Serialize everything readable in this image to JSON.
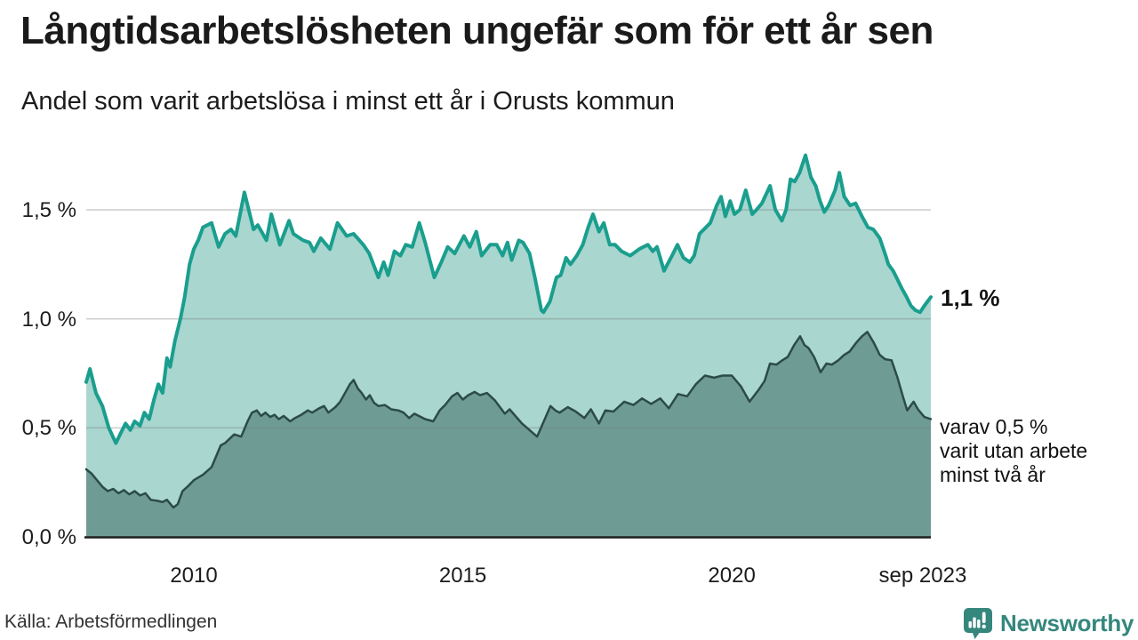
{
  "header": {
    "title": "Långtidsarbetslösheten ungefär som för ett år sen",
    "subtitle": "Andel som varit arbetslösa i minst ett år i Orusts kommun"
  },
  "footer": {
    "source": "Källa: Arbetsförmedlingen",
    "brand": "Newsworthy"
  },
  "colors": {
    "line_total": "#1a9e8e",
    "fill_total": "#a9d6cf",
    "line_two_plus": "#2c4b46",
    "fill_two_plus": "#6e9c95",
    "gridline": "rgba(120,120,120,0.35)",
    "baseline": "#1f1f1f",
    "brand_teal": "#35877d"
  },
  "chart_data": {
    "type": "area",
    "title": "Långtidsarbetslösheten ungefär som för ett år sen",
    "subtitle": "Andel som varit arbetslösa i minst ett år i Orusts kommun",
    "unit": "%",
    "x_range": [
      2008.0,
      2023.7
    ],
    "ylim": [
      0,
      1.8
    ],
    "grid": true,
    "legend_position": "none",
    "x_ticks": [
      {
        "label": "2010",
        "value": 2010
      },
      {
        "label": "2015",
        "value": 2015
      },
      {
        "label": "2020",
        "value": 2020
      },
      {
        "label": "sep 2023",
        "value": 2023.55
      }
    ],
    "y_ticks": [
      {
        "label": "0,0 %",
        "value": 0
      },
      {
        "label": "0,5 %",
        "value": 0.5
      },
      {
        "label": "1,0 %",
        "value": 1.0
      },
      {
        "label": "1,5 %",
        "value": 1.5
      }
    ],
    "annotations": {
      "latest_total": "1,1 %",
      "two_year_lines": [
        "varav 0,5 %",
        "varit utan arbete",
        "minst två år"
      ]
    },
    "series": [
      {
        "name": "Arbetslösa minst ett år",
        "points": [
          [
            2008.0,
            0.71
          ],
          [
            2008.07,
            0.77
          ],
          [
            2008.18,
            0.66
          ],
          [
            2008.3,
            0.6
          ],
          [
            2008.42,
            0.5
          ],
          [
            2008.55,
            0.43
          ],
          [
            2008.65,
            0.48
          ],
          [
            2008.73,
            0.52
          ],
          [
            2008.82,
            0.49
          ],
          [
            2008.9,
            0.53
          ],
          [
            2009.0,
            0.51
          ],
          [
            2009.08,
            0.57
          ],
          [
            2009.17,
            0.54
          ],
          [
            2009.26,
            0.63
          ],
          [
            2009.34,
            0.7
          ],
          [
            2009.42,
            0.66
          ],
          [
            2009.5,
            0.82
          ],
          [
            2009.56,
            0.78
          ],
          [
            2009.65,
            0.9
          ],
          [
            2009.75,
            1.0
          ],
          [
            2009.83,
            1.1
          ],
          [
            2009.92,
            1.25
          ],
          [
            2010.0,
            1.32
          ],
          [
            2010.08,
            1.36
          ],
          [
            2010.17,
            1.42
          ],
          [
            2010.33,
            1.44
          ],
          [
            2010.46,
            1.33
          ],
          [
            2010.58,
            1.39
          ],
          [
            2010.69,
            1.41
          ],
          [
            2010.78,
            1.38
          ],
          [
            2010.94,
            1.58
          ],
          [
            2011.11,
            1.41
          ],
          [
            2011.19,
            1.43
          ],
          [
            2011.35,
            1.36
          ],
          [
            2011.44,
            1.48
          ],
          [
            2011.6,
            1.34
          ],
          [
            2011.77,
            1.45
          ],
          [
            2011.85,
            1.39
          ],
          [
            2012.03,
            1.36
          ],
          [
            2012.15,
            1.35
          ],
          [
            2012.23,
            1.31
          ],
          [
            2012.36,
            1.37
          ],
          [
            2012.53,
            1.32
          ],
          [
            2012.67,
            1.44
          ],
          [
            2012.84,
            1.38
          ],
          [
            2012.97,
            1.39
          ],
          [
            2013.15,
            1.34
          ],
          [
            2013.26,
            1.3
          ],
          [
            2013.43,
            1.19
          ],
          [
            2013.53,
            1.26
          ],
          [
            2013.61,
            1.2
          ],
          [
            2013.73,
            1.31
          ],
          [
            2013.84,
            1.29
          ],
          [
            2013.94,
            1.34
          ],
          [
            2014.06,
            1.33
          ],
          [
            2014.19,
            1.44
          ],
          [
            2014.3,
            1.35
          ],
          [
            2014.47,
            1.19
          ],
          [
            2014.6,
            1.26
          ],
          [
            2014.72,
            1.33
          ],
          [
            2014.85,
            1.3
          ],
          [
            2015.02,
            1.38
          ],
          [
            2015.13,
            1.33
          ],
          [
            2015.25,
            1.4
          ],
          [
            2015.35,
            1.29
          ],
          [
            2015.51,
            1.34
          ],
          [
            2015.63,
            1.34
          ],
          [
            2015.74,
            1.29
          ],
          [
            2015.83,
            1.35
          ],
          [
            2015.91,
            1.27
          ],
          [
            2016.04,
            1.36
          ],
          [
            2016.12,
            1.35
          ],
          [
            2016.24,
            1.3
          ],
          [
            2016.34,
            1.19
          ],
          [
            2016.46,
            1.04
          ],
          [
            2016.5,
            1.03
          ],
          [
            2016.62,
            1.08
          ],
          [
            2016.74,
            1.19
          ],
          [
            2016.82,
            1.2
          ],
          [
            2016.92,
            1.28
          ],
          [
            2017.0,
            1.25
          ],
          [
            2017.12,
            1.29
          ],
          [
            2017.23,
            1.34
          ],
          [
            2017.33,
            1.42
          ],
          [
            2017.42,
            1.48
          ],
          [
            2017.53,
            1.4
          ],
          [
            2017.62,
            1.44
          ],
          [
            2017.73,
            1.34
          ],
          [
            2017.83,
            1.34
          ],
          [
            2017.95,
            1.31
          ],
          [
            2018.11,
            1.29
          ],
          [
            2018.28,
            1.32
          ],
          [
            2018.44,
            1.34
          ],
          [
            2018.53,
            1.31
          ],
          [
            2018.61,
            1.33
          ],
          [
            2018.74,
            1.22
          ],
          [
            2018.89,
            1.29
          ],
          [
            2018.99,
            1.34
          ],
          [
            2019.1,
            1.28
          ],
          [
            2019.22,
            1.26
          ],
          [
            2019.3,
            1.29
          ],
          [
            2019.4,
            1.39
          ],
          [
            2019.52,
            1.42
          ],
          [
            2019.6,
            1.44
          ],
          [
            2019.72,
            1.52
          ],
          [
            2019.8,
            1.56
          ],
          [
            2019.88,
            1.47
          ],
          [
            2019.97,
            1.54
          ],
          [
            2020.05,
            1.48
          ],
          [
            2020.15,
            1.5
          ],
          [
            2020.26,
            1.59
          ],
          [
            2020.38,
            1.48
          ],
          [
            2020.46,
            1.5
          ],
          [
            2020.56,
            1.53
          ],
          [
            2020.71,
            1.61
          ],
          [
            2020.81,
            1.5
          ],
          [
            2020.93,
            1.45
          ],
          [
            2021.01,
            1.5
          ],
          [
            2021.09,
            1.64
          ],
          [
            2021.17,
            1.63
          ],
          [
            2021.26,
            1.67
          ],
          [
            2021.37,
            1.75
          ],
          [
            2021.47,
            1.65
          ],
          [
            2021.56,
            1.61
          ],
          [
            2021.64,
            1.54
          ],
          [
            2021.72,
            1.49
          ],
          [
            2021.8,
            1.52
          ],
          [
            2021.92,
            1.59
          ],
          [
            2022.0,
            1.67
          ],
          [
            2022.09,
            1.56
          ],
          [
            2022.2,
            1.52
          ],
          [
            2022.3,
            1.53
          ],
          [
            2022.42,
            1.47
          ],
          [
            2022.53,
            1.42
          ],
          [
            2022.63,
            1.41
          ],
          [
            2022.75,
            1.37
          ],
          [
            2022.86,
            1.29
          ],
          [
            2022.91,
            1.25
          ],
          [
            2023.0,
            1.22
          ],
          [
            2023.08,
            1.18
          ],
          [
            2023.16,
            1.14
          ],
          [
            2023.25,
            1.1
          ],
          [
            2023.33,
            1.06
          ],
          [
            2023.41,
            1.04
          ],
          [
            2023.5,
            1.03
          ],
          [
            2023.58,
            1.06
          ],
          [
            2023.7,
            1.1
          ]
        ]
      },
      {
        "name": "varav utan arbete minst två år",
        "points": [
          [
            2008.0,
            0.31
          ],
          [
            2008.1,
            0.29
          ],
          [
            2008.2,
            0.26
          ],
          [
            2008.3,
            0.23
          ],
          [
            2008.4,
            0.21
          ],
          [
            2008.5,
            0.22
          ],
          [
            2008.6,
            0.2
          ],
          [
            2008.7,
            0.215
          ],
          [
            2008.8,
            0.195
          ],
          [
            2008.9,
            0.21
          ],
          [
            2009.0,
            0.19
          ],
          [
            2009.1,
            0.2
          ],
          [
            2009.2,
            0.17
          ],
          [
            2009.33,
            0.165
          ],
          [
            2009.42,
            0.16
          ],
          [
            2009.5,
            0.17
          ],
          [
            2009.62,
            0.135
          ],
          [
            2009.7,
            0.15
          ],
          [
            2009.79,
            0.21
          ],
          [
            2009.88,
            0.23
          ],
          [
            2010.0,
            0.26
          ],
          [
            2010.17,
            0.285
          ],
          [
            2010.33,
            0.32
          ],
          [
            2010.5,
            0.42
          ],
          [
            2010.58,
            0.43
          ],
          [
            2010.75,
            0.47
          ],
          [
            2010.88,
            0.46
          ],
          [
            2011.0,
            0.53
          ],
          [
            2011.08,
            0.57
          ],
          [
            2011.17,
            0.58
          ],
          [
            2011.25,
            0.555
          ],
          [
            2011.33,
            0.57
          ],
          [
            2011.42,
            0.55
          ],
          [
            2011.5,
            0.56
          ],
          [
            2011.58,
            0.54
          ],
          [
            2011.67,
            0.555
          ],
          [
            2011.79,
            0.53
          ],
          [
            2011.88,
            0.545
          ],
          [
            2012.0,
            0.56
          ],
          [
            2012.12,
            0.58
          ],
          [
            2012.2,
            0.57
          ],
          [
            2012.33,
            0.59
          ],
          [
            2012.42,
            0.6
          ],
          [
            2012.5,
            0.57
          ],
          [
            2012.63,
            0.595
          ],
          [
            2012.72,
            0.62
          ],
          [
            2012.8,
            0.655
          ],
          [
            2012.9,
            0.7
          ],
          [
            2012.97,
            0.72
          ],
          [
            2013.05,
            0.68
          ],
          [
            2013.12,
            0.66
          ],
          [
            2013.2,
            0.63
          ],
          [
            2013.27,
            0.65
          ],
          [
            2013.35,
            0.615
          ],
          [
            2013.43,
            0.6
          ],
          [
            2013.55,
            0.605
          ],
          [
            2013.67,
            0.585
          ],
          [
            2013.8,
            0.58
          ],
          [
            2013.9,
            0.57
          ],
          [
            2014.0,
            0.545
          ],
          [
            2014.1,
            0.565
          ],
          [
            2014.3,
            0.54
          ],
          [
            2014.45,
            0.53
          ],
          [
            2014.57,
            0.58
          ],
          [
            2014.67,
            0.605
          ],
          [
            2014.8,
            0.645
          ],
          [
            2014.9,
            0.66
          ],
          [
            2015.0,
            0.63
          ],
          [
            2015.1,
            0.65
          ],
          [
            2015.22,
            0.665
          ],
          [
            2015.32,
            0.65
          ],
          [
            2015.45,
            0.66
          ],
          [
            2015.6,
            0.625
          ],
          [
            2015.78,
            0.565
          ],
          [
            2015.87,
            0.585
          ],
          [
            2016.1,
            0.52
          ],
          [
            2016.38,
            0.46
          ],
          [
            2016.63,
            0.6
          ],
          [
            2016.72,
            0.58
          ],
          [
            2016.8,
            0.57
          ],
          [
            2016.95,
            0.595
          ],
          [
            2017.1,
            0.575
          ],
          [
            2017.26,
            0.545
          ],
          [
            2017.38,
            0.585
          ],
          [
            2017.53,
            0.52
          ],
          [
            2017.65,
            0.58
          ],
          [
            2017.8,
            0.575
          ],
          [
            2018.0,
            0.62
          ],
          [
            2018.17,
            0.605
          ],
          [
            2018.33,
            0.635
          ],
          [
            2018.5,
            0.61
          ],
          [
            2018.67,
            0.635
          ],
          [
            2018.83,
            0.59
          ],
          [
            2019.0,
            0.655
          ],
          [
            2019.17,
            0.645
          ],
          [
            2019.33,
            0.7
          ],
          [
            2019.5,
            0.74
          ],
          [
            2019.67,
            0.73
          ],
          [
            2019.83,
            0.74
          ],
          [
            2020.0,
            0.74
          ],
          [
            2020.17,
            0.69
          ],
          [
            2020.33,
            0.62
          ],
          [
            2020.5,
            0.675
          ],
          [
            2020.61,
            0.715
          ],
          [
            2020.71,
            0.795
          ],
          [
            2020.83,
            0.79
          ],
          [
            2020.94,
            0.81
          ],
          [
            2021.04,
            0.825
          ],
          [
            2021.16,
            0.88
          ],
          [
            2021.27,
            0.92
          ],
          [
            2021.35,
            0.88
          ],
          [
            2021.43,
            0.865
          ],
          [
            2021.53,
            0.825
          ],
          [
            2021.65,
            0.755
          ],
          [
            2021.76,
            0.795
          ],
          [
            2021.86,
            0.79
          ],
          [
            2021.98,
            0.81
          ],
          [
            2022.09,
            0.835
          ],
          [
            2022.19,
            0.85
          ],
          [
            2022.31,
            0.89
          ],
          [
            2022.42,
            0.92
          ],
          [
            2022.52,
            0.94
          ],
          [
            2022.64,
            0.89
          ],
          [
            2022.75,
            0.835
          ],
          [
            2022.85,
            0.815
          ],
          [
            2022.97,
            0.81
          ],
          [
            2023.08,
            0.73
          ],
          [
            2023.18,
            0.645
          ],
          [
            2023.26,
            0.58
          ],
          [
            2023.38,
            0.62
          ],
          [
            2023.46,
            0.585
          ],
          [
            2023.58,
            0.55
          ],
          [
            2023.7,
            0.54
          ]
        ]
      }
    ]
  }
}
